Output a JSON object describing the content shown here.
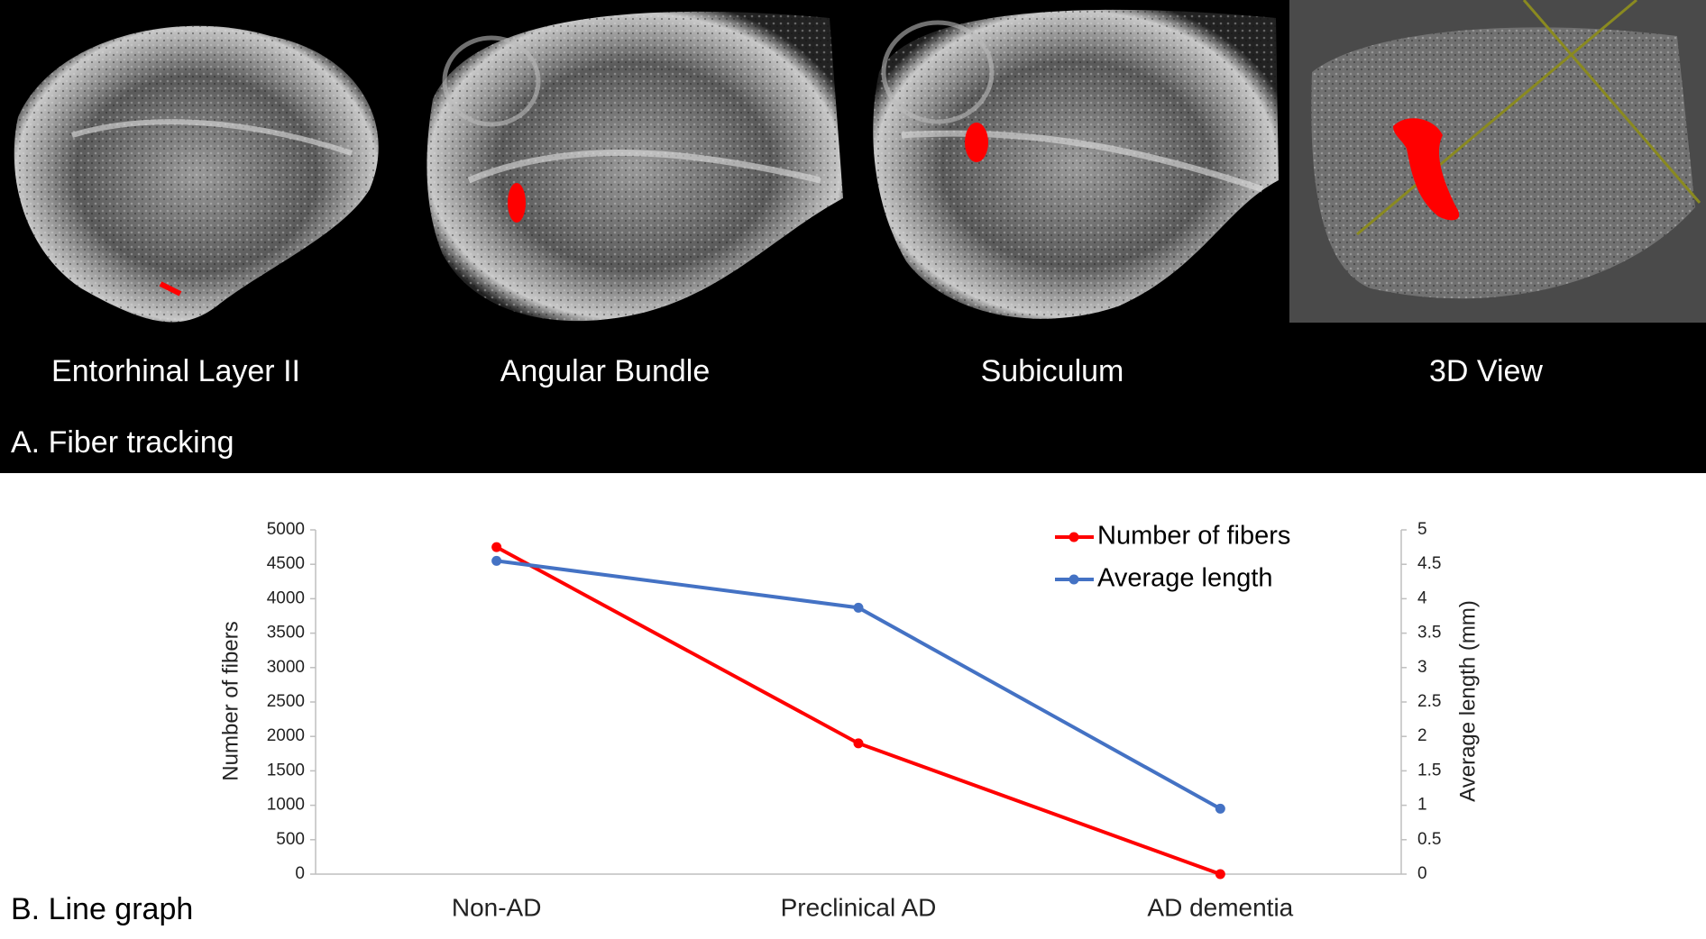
{
  "panel_a": {
    "title": "A. Fiber tracking",
    "captions": [
      "Entorhinal Layer II",
      "Angular Bundle",
      "Subiculum",
      "3D View"
    ]
  },
  "panel_b": {
    "title": "B. Line graph"
  },
  "chart_data": {
    "type": "line",
    "categories": [
      "Non-AD",
      "Preclinical AD",
      "AD dementia"
    ],
    "y_label": "Number of fibers",
    "y2_label": "Average length (mm)",
    "ylim": [
      0,
      5000
    ],
    "yticks": [
      0,
      500,
      1000,
      1500,
      2000,
      2500,
      3000,
      3500,
      4000,
      4500,
      5000
    ],
    "y2lim": [
      0,
      5
    ],
    "y2ticks": [
      0,
      0.5,
      1,
      1.5,
      2,
      2.5,
      3,
      3.5,
      4,
      4.5,
      5
    ],
    "legend": "top-right",
    "series": [
      {
        "name": "Number of fibers",
        "color": "#ff0000",
        "values": [
          4750,
          1900,
          0
        ]
      },
      {
        "name": "Average length",
        "color": "#4472c4",
        "values": [
          4.55,
          3.87,
          0.95
        ],
        "axis": "y2"
      }
    ]
  }
}
